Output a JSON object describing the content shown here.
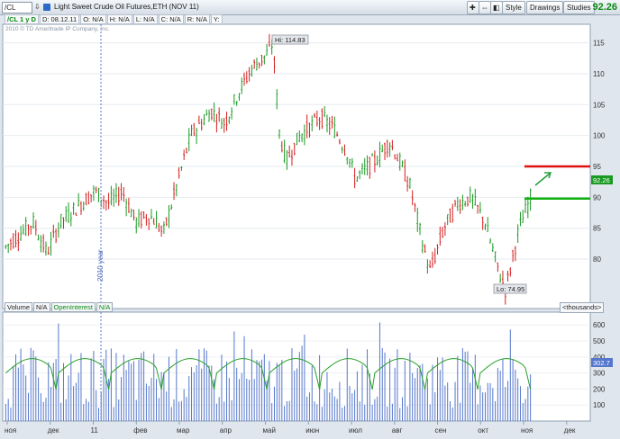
{
  "toolbar": {
    "symbol": "/CL",
    "instrument": "Light Sweet Crude Oil Futures,ETH (NOV 11)",
    "buttons": [
      "Style",
      "Drawings",
      "Studies"
    ],
    "last_price": "92.26"
  },
  "header": {
    "study": "/CL 1 y D",
    "date": "D: 08.12.11",
    "open": "O: N/A",
    "high": "H: N/A",
    "low": "L: N/A",
    "close": "C: N/A",
    "r": "R: N/A",
    "y": "Y:"
  },
  "copyright": "2010 © TD Ameritrade IP Company, Inc.",
  "annotations": {
    "hi_label": "Hi: 114.83",
    "lo_label": "Lo: 74.95",
    "year_label": "2010 year",
    "price_tag": "92.26",
    "vol_tag": "302.7"
  },
  "colors": {
    "up": "#1a9a22",
    "down": "#d42020",
    "volume": "#5577cc",
    "open_interest": "#28a028",
    "resistance": "#e01010",
    "support": "#10b010",
    "arrow": "#20a040",
    "background": "#ffffff"
  },
  "volume_legend": {
    "volume": "Volume",
    "volume_value": "N/A",
    "open_interest": "OpenInterest",
    "open_interest_value": "N/A",
    "units": "<thousands>"
  },
  "chart_data": [
    {
      "type": "candlestick",
      "title": "",
      "y_ticks": [
        80,
        85,
        90,
        95,
        100,
        105,
        110,
        115
      ],
      "ylim": [
        72,
        118
      ],
      "x_labels": [
        "ноя",
        "дек",
        "11",
        "фев",
        "мар",
        "апр",
        "май",
        "июн",
        "июл",
        "авг",
        "сен",
        "окт",
        "ноя",
        "дек"
      ],
      "price_path": [
        [
          0,
          82
        ],
        [
          4,
          86
        ],
        [
          6,
          81
        ],
        [
          8,
          86
        ],
        [
          10,
          88
        ],
        [
          13,
          91
        ],
        [
          15,
          89
        ],
        [
          17,
          91
        ],
        [
          19,
          86
        ],
        [
          21,
          87
        ],
        [
          22,
          86
        ],
        [
          23,
          84
        ],
        [
          25,
          92
        ],
        [
          27,
          100
        ],
        [
          30,
          104
        ],
        [
          32,
          102
        ],
        [
          34,
          107
        ],
        [
          36,
          111
        ],
        [
          38,
          113
        ],
        [
          39,
          114.83
        ],
        [
          40,
          100
        ],
        [
          41,
          96
        ],
        [
          43,
          100
        ],
        [
          46,
          103
        ],
        [
          48,
          101
        ],
        [
          50,
          97
        ],
        [
          51,
          93
        ],
        [
          52,
          94
        ],
        [
          54,
          96
        ],
        [
          56,
          99
        ],
        [
          57,
          97
        ],
        [
          59,
          92
        ],
        [
          61,
          82
        ],
        [
          62,
          78
        ],
        [
          64,
          85
        ],
        [
          66,
          89
        ],
        [
          68,
          90
        ],
        [
          70,
          86
        ],
        [
          72,
          78
        ],
        [
          73,
          74.95
        ],
        [
          75,
          85
        ],
        [
          77,
          91
        ]
      ],
      "high": 114.83,
      "low": 74.95,
      "last": 92.26,
      "levels": [
        {
          "value": 95,
          "color": "resistance"
        },
        {
          "value": 89.8,
          "color": "support"
        }
      ]
    },
    {
      "type": "bar",
      "series": [
        {
          "name": "Volume",
          "kind": "bar"
        },
        {
          "name": "OpenInterest",
          "kind": "line"
        }
      ],
      "y_ticks": [
        100,
        200,
        300,
        400,
        500,
        600
      ],
      "ylim": [
        0,
        680
      ]
    }
  ]
}
